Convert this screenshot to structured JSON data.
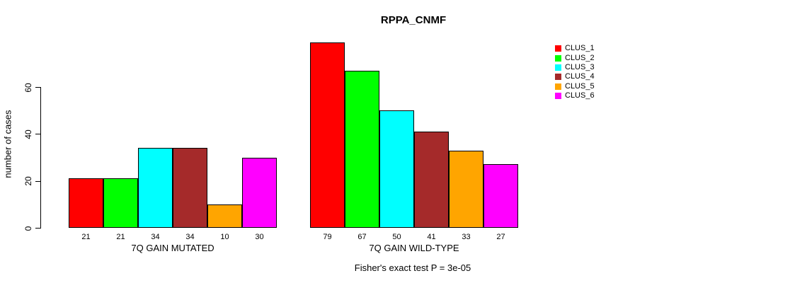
{
  "figure": {
    "background": "#FFFFFF",
    "text_color": "#000000",
    "axis_color": "#000000"
  },
  "chart_data": {
    "type": "bar",
    "title": "RPPA_CNMF",
    "xlabel": "",
    "ylabel": "number of cases",
    "yticks": [
      0,
      20,
      40,
      60
    ],
    "ylim": [
      0,
      79
    ],
    "grid": false,
    "legend_position": "top-right",
    "series_colors": [
      "#FF0000",
      "#00FF00",
      "#00FFFF",
      "#A52A2A",
      "#FFA500",
      "#FF00FF"
    ],
    "groups": [
      {
        "label": "7Q GAIN MUTATED",
        "values": [
          21,
          21,
          34,
          34,
          10,
          30
        ]
      },
      {
        "label": "7Q GAIN WILD-TYPE",
        "values": [
          79,
          67,
          50,
          41,
          33,
          27
        ]
      }
    ],
    "bar_value_labels_shown": true,
    "annotation": "Fisher's exact test P = 3e-05",
    "legend": [
      {
        "label": "CLUS_1",
        "color": "#FF0000"
      },
      {
        "label": "CLUS_2",
        "color": "#00FF00"
      },
      {
        "label": "CLUS_3",
        "color": "#00FFFF"
      },
      {
        "label": "CLUS_4",
        "color": "#A52A2A"
      },
      {
        "label": "CLUS_5",
        "color": "#FFA500"
      },
      {
        "label": "CLUS_6",
        "color": "#FF00FF"
      }
    ]
  }
}
